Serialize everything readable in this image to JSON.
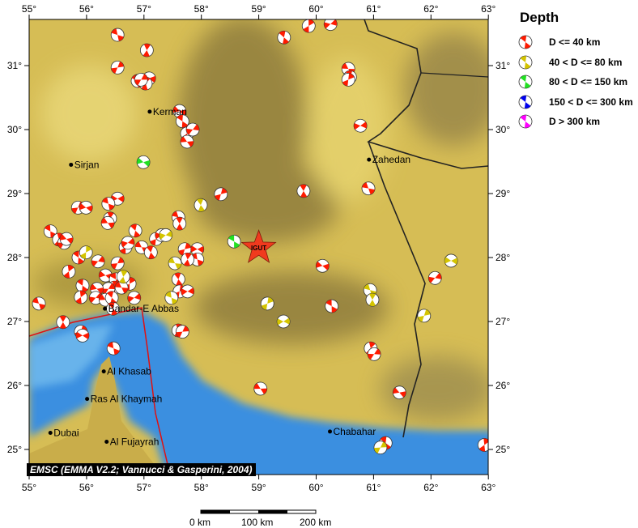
{
  "map": {
    "lon_range": [
      55,
      63
    ],
    "lat_range": [
      24.6,
      31.7
    ],
    "lon_ticks": [
      "55°",
      "56°",
      "57°",
      "58°",
      "59°",
      "60°",
      "61°",
      "62°",
      "63°"
    ],
    "lat_ticks": [
      "25°",
      "26°",
      "27°",
      "28°",
      "29°",
      "30°",
      "31°"
    ],
    "colors": {
      "land": "#d6bd55",
      "lowland": "#8f7d3e",
      "sea": "#3b8fe0",
      "shallow": "#7cc3f0",
      "plate_boundary": "#e01010",
      "border": "#222222"
    },
    "station": {
      "label": "IGUT",
      "lon": 59.0,
      "lat": 28.15,
      "color": "#f03a1e"
    },
    "cities": [
      {
        "name": "Kerman",
        "lon": 57.1,
        "lat": 30.28
      },
      {
        "name": "Sirjan",
        "lon": 55.73,
        "lat": 29.45
      },
      {
        "name": "Zahedan",
        "lon": 60.92,
        "lat": 29.53
      },
      {
        "name": "Bandar-E Abbas",
        "lon": 56.32,
        "lat": 27.2
      },
      {
        "name": "Al Khasab",
        "lon": 56.3,
        "lat": 26.22
      },
      {
        "name": "Ras Al Khaymah",
        "lon": 56.01,
        "lat": 25.79
      },
      {
        "name": "Dubai",
        "lon": 55.37,
        "lat": 25.26
      },
      {
        "name": "Al Fujayrah",
        "lon": 56.35,
        "lat": 25.12
      },
      {
        "name": "Chabahar",
        "lon": 60.24,
        "lat": 25.28
      }
    ],
    "events": [
      [
        56.54,
        31.48,
        0
      ],
      [
        57.05,
        31.24,
        0
      ],
      [
        56.54,
        30.97,
        0
      ],
      [
        57.09,
        30.8,
        0
      ],
      [
        56.89,
        30.76,
        0
      ],
      [
        57.03,
        30.72,
        0
      ],
      [
        56.95,
        30.78,
        0
      ],
      [
        57.62,
        30.29,
        0
      ],
      [
        57.67,
        30.13,
        0
      ],
      [
        57.75,
        29.94,
        0
      ],
      [
        57.85,
        30.0,
        0
      ],
      [
        57.75,
        29.81,
        0
      ],
      [
        59.44,
        31.44,
        0
      ],
      [
        59.87,
        31.62,
        0
      ],
      [
        60.25,
        31.65,
        0
      ],
      [
        60.56,
        30.95,
        0
      ],
      [
        60.59,
        30.82,
        0
      ],
      [
        60.56,
        30.78,
        0
      ],
      [
        60.77,
        30.06,
        0
      ],
      [
        60.91,
        29.08,
        0
      ],
      [
        59.78,
        29.04,
        0
      ],
      [
        58.34,
        28.99,
        0
      ],
      [
        56.54,
        28.92,
        0
      ],
      [
        56.38,
        28.84,
        0
      ],
      [
        56.41,
        28.61,
        0
      ],
      [
        55.85,
        28.78,
        0
      ],
      [
        55.99,
        28.78,
        0
      ],
      [
        55.37,
        28.41,
        0
      ],
      [
        55.52,
        28.28,
        0
      ],
      [
        55.61,
        28.23,
        0
      ],
      [
        55.65,
        28.29,
        0
      ],
      [
        55.86,
        28.0,
        0
      ],
      [
        55.69,
        27.78,
        0
      ],
      [
        56.2,
        27.94,
        0
      ],
      [
        56.37,
        28.54,
        0
      ],
      [
        56.85,
        28.42,
        0
      ],
      [
        56.68,
        28.16,
        0
      ],
      [
        56.72,
        28.23,
        0
      ],
      [
        56.96,
        28.16,
        0
      ],
      [
        57.12,
        28.08,
        0
      ],
      [
        57.21,
        28.29,
        0
      ],
      [
        57.31,
        28.35,
        0
      ],
      [
        57.6,
        28.63,
        0
      ],
      [
        57.62,
        28.53,
        0
      ],
      [
        57.71,
        28.13,
        0
      ],
      [
        57.93,
        28.13,
        0
      ],
      [
        57.93,
        27.97,
        0
      ],
      [
        57.76,
        27.97,
        0
      ],
      [
        56.54,
        27.91,
        0
      ],
      [
        56.33,
        27.72,
        0
      ],
      [
        56.51,
        27.66,
        0
      ],
      [
        56.48,
        27.53,
        0
      ],
      [
        56.38,
        27.51,
        0
      ],
      [
        56.18,
        27.51,
        0
      ],
      [
        55.93,
        27.56,
        0
      ],
      [
        55.9,
        27.38,
        0
      ],
      [
        56.16,
        27.37,
        0
      ],
      [
        56.33,
        27.34,
        0
      ],
      [
        56.44,
        27.37,
        0
      ],
      [
        56.75,
        27.59,
        0
      ],
      [
        56.83,
        27.37,
        0
      ],
      [
        56.61,
        27.53,
        0
      ],
      [
        57.6,
        27.66,
        0
      ],
      [
        57.62,
        27.47,
        0
      ],
      [
        57.76,
        27.47,
        0
      ],
      [
        55.17,
        27.28,
        0
      ],
      [
        55.59,
        26.99,
        0
      ],
      [
        55.9,
        26.84,
        0
      ],
      [
        55.93,
        26.78,
        0
      ],
      [
        56.47,
        26.58,
        0
      ],
      [
        57.6,
        26.86,
        0
      ],
      [
        57.67,
        26.84,
        0
      ],
      [
        60.11,
        27.87,
        0
      ],
      [
        60.27,
        27.24,
        0
      ],
      [
        60.95,
        26.58,
        0
      ],
      [
        61.01,
        26.49,
        0
      ],
      [
        61.45,
        25.89,
        0
      ],
      [
        61.21,
        25.1,
        0
      ],
      [
        62.93,
        25.07,
        0
      ],
      [
        62.07,
        27.68,
        0
      ],
      [
        59.03,
        25.95,
        0
      ],
      [
        56.46,
        27.2,
        0
      ],
      [
        55.99,
        28.08,
        1
      ],
      [
        57.38,
        28.35,
        1
      ],
      [
        57.54,
        27.91,
        1
      ],
      [
        57.99,
        28.82,
        1
      ],
      [
        59.15,
        27.28,
        1
      ],
      [
        59.43,
        27.0,
        1
      ],
      [
        60.94,
        27.49,
        1
      ],
      [
        60.98,
        27.34,
        1
      ],
      [
        61.88,
        27.09,
        1
      ],
      [
        62.35,
        27.95,
        1
      ],
      [
        57.48,
        27.37,
        1
      ],
      [
        56.64,
        27.7,
        1
      ],
      [
        61.12,
        25.03,
        1
      ],
      [
        56.99,
        29.49,
        2
      ],
      [
        58.57,
        28.25,
        2
      ]
    ]
  },
  "legend": {
    "title": "Depth",
    "items": [
      {
        "label": "D <= 40 km",
        "color": "#ff1a00"
      },
      {
        "label": "40 < D <= 80 km",
        "color": "#d4c400"
      },
      {
        "label": "80 < D <= 150 km",
        "color": "#22e022"
      },
      {
        "label": "150 < D <= 300 km",
        "color": "#0000ee"
      },
      {
        "label": "D > 300 km",
        "color": "#ff00ff"
      }
    ]
  },
  "attribution": "EMSC (EMMA V2.2; Vannucci & Gasperini, 2004)",
  "scale_bar": {
    "labels": [
      "0 km",
      "100 km",
      "200 km"
    ]
  }
}
